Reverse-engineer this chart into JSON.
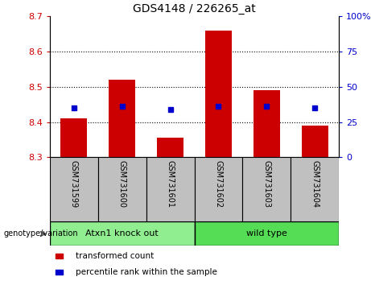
{
  "title": "GDS4148 / 226265_at",
  "samples": [
    "GSM731599",
    "GSM731600",
    "GSM731601",
    "GSM731602",
    "GSM731603",
    "GSM731604"
  ],
  "bar_values": [
    8.41,
    8.52,
    8.355,
    8.66,
    8.49,
    8.39
  ],
  "bar_bottom": 8.3,
  "percentile_values": [
    8.44,
    8.445,
    8.435,
    8.445,
    8.445,
    8.44
  ],
  "ylim_left": [
    8.3,
    8.7
  ],
  "ylim_right": [
    0,
    100
  ],
  "yticks_left": [
    8.3,
    8.4,
    8.5,
    8.6,
    8.7
  ],
  "yticks_right": [
    0,
    25,
    50,
    75,
    100
  ],
  "ytick_labels_right": [
    "0",
    "25",
    "50",
    "75",
    "100%"
  ],
  "grid_values": [
    8.4,
    8.5,
    8.6
  ],
  "bar_color": "#cc0000",
  "dot_color": "#0000cc",
  "groups": [
    {
      "label": "Atxn1 knock out",
      "indices": [
        0,
        1,
        2
      ],
      "color": "#90ee90"
    },
    {
      "label": "wild type",
      "indices": [
        3,
        4,
        5
      ],
      "color": "#55dd55"
    }
  ],
  "group_label_prefix": "genotype/variation",
  "legend_items": [
    {
      "label": "transformed count",
      "color": "#cc0000"
    },
    {
      "label": "percentile rank within the sample",
      "color": "#0000cc"
    }
  ],
  "bar_width": 0.55,
  "tick_color_left": "#cc0000",
  "tick_color_right": "#0000cc",
  "xlabel_area_bg": "#c0c0c0"
}
